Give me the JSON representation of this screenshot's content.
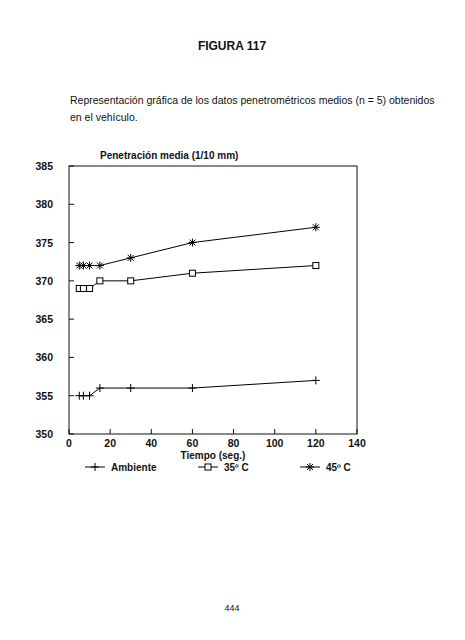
{
  "page": {
    "figure_label": "FIGURA 117",
    "caption_lines": [
      "Representación gráfica de los datos penetrométricos medios (n = 5) obtenidos",
      "en el vehículo."
    ],
    "page_number": "444"
  },
  "chart_data": {
    "type": "line",
    "y_label": "Penetración media (1/10 mm)",
    "x_label": "Tiempo (seg.)",
    "x": [
      5,
      7,
      10,
      15,
      30,
      60,
      120
    ],
    "series": [
      {
        "name": "Ambiente",
        "color": "#000000",
        "marker": "plus",
        "line_style": "solid",
        "values": [
          355,
          355,
          355,
          356,
          356,
          356,
          357
        ]
      },
      {
        "name": "35º C",
        "color": "#000000",
        "marker": "square",
        "line_style": "solid",
        "values": [
          369,
          369,
          369,
          370,
          370,
          371,
          372
        ]
      },
      {
        "name": "45º C",
        "color": "#000000",
        "marker": "asterisk",
        "line_style": "solid",
        "values": [
          372,
          372,
          372,
          372,
          373,
          375,
          377
        ]
      }
    ],
    "xlim": [
      0,
      140
    ],
    "xticks": [
      0,
      20,
      40,
      60,
      80,
      100,
      120,
      140
    ],
    "ylim": [
      350,
      385
    ],
    "yticks": [
      350,
      355,
      360,
      365,
      370,
      375,
      380,
      385
    ],
    "grid": false,
    "legend": "bottom"
  }
}
